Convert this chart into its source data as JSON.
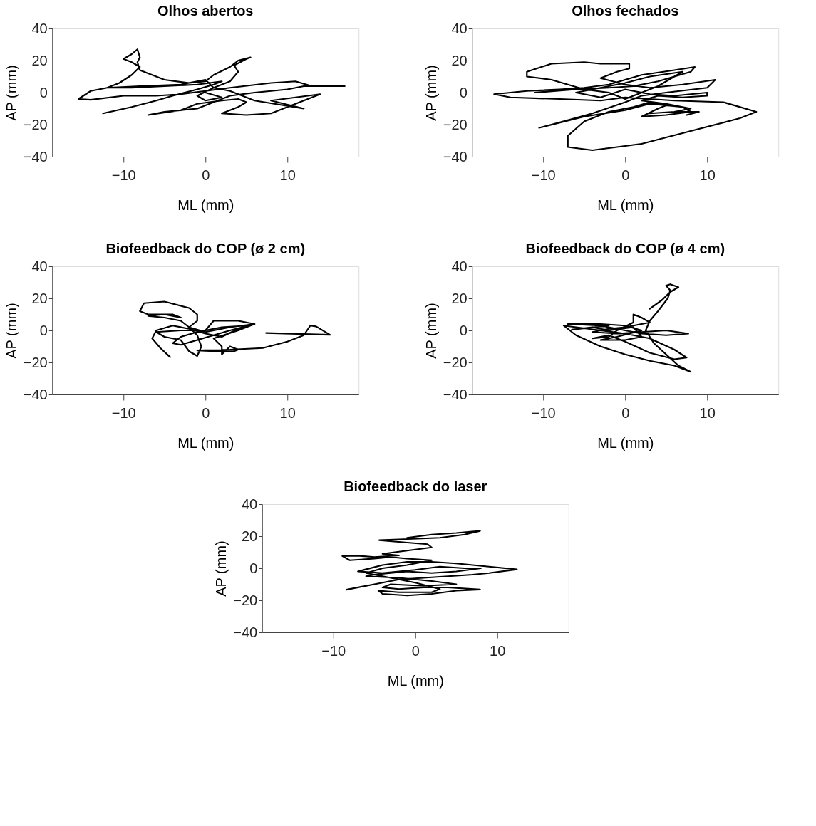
{
  "chart_data": [
    {
      "type": "line",
      "title": "Olhos abertos",
      "xlabel": "ML (mm)",
      "ylabel": "AP (mm)",
      "xlim": [
        -18.7,
        18.7
      ],
      "ylim": [
        -40,
        40
      ],
      "xticks": [
        -10,
        0,
        10
      ],
      "yticks": [
        -40,
        -20,
        0,
        20,
        40
      ],
      "grid": false,
      "series": [
        {
          "color": "#000000",
          "x": [
            -12.5,
            -9,
            -6,
            -4,
            -1,
            1,
            2,
            -1,
            -5,
            -9,
            -12,
            -14,
            -15.5,
            -14,
            -10,
            -6,
            -3,
            0,
            3,
            8,
            11,
            13,
            17,
            12,
            10,
            6,
            3,
            1,
            -1,
            -5,
            -7,
            -3,
            -1,
            2,
            4,
            5,
            4,
            2,
            5,
            8,
            11,
            14,
            11,
            8,
            12,
            6,
            3,
            1,
            3,
            3.5,
            4,
            3.5,
            5,
            5.5,
            4,
            3,
            1,
            0,
            -2,
            -5,
            -8,
            -8.3,
            -8,
            -8.3,
            -9,
            -10,
            -9,
            -8,
            -9,
            -10.5,
            -12,
            -8,
            -3,
            0,
            1,
            -1,
            0,
            2,
            0
          ],
          "values": [
            -13,
            -9,
            -5,
            -2,
            2,
            5,
            7,
            5,
            4,
            3,
            3,
            1,
            -4,
            -4.5,
            -2,
            -2,
            -1,
            1,
            3,
            6,
            7,
            4,
            4,
            4,
            2,
            0,
            -2,
            -6,
            -10,
            -12,
            -14,
            -11,
            -7,
            -5,
            -4,
            -6,
            -9,
            -13,
            -14,
            -13,
            -7,
            -1,
            -3,
            -5,
            -10,
            -5,
            1,
            3,
            7,
            10,
            13,
            17,
            21,
            22,
            20,
            16,
            11,
            7,
            6,
            8,
            14,
            19,
            22,
            27,
            24,
            21,
            19,
            16,
            11,
            6,
            3,
            4,
            5,
            8,
            3,
            -2,
            -5,
            -3,
            0
          ]
        }
      ]
    },
    {
      "type": "line",
      "title": "Olhos fechados",
      "xlabel": "ML (mm)",
      "ylabel": "AP (mm)",
      "xlim": [
        -18.7,
        18.7
      ],
      "ylim": [
        -40,
        40
      ],
      "xticks": [
        -10,
        0,
        10
      ],
      "yticks": [
        -40,
        -20,
        0,
        20,
        40
      ],
      "grid": false,
      "series": [
        {
          "color": "#000000",
          "x": [
            -11,
            -6,
            -2,
            1,
            4,
            8,
            8.5,
            6,
            2,
            -2,
            -5,
            -8,
            -12,
            -16,
            -14,
            -8,
            -3,
            0,
            3,
            6,
            12,
            16,
            14,
            8,
            2,
            -4,
            -7,
            -7,
            -5,
            -2,
            1,
            3,
            5,
            4,
            2,
            5,
            8,
            7,
            3,
            0,
            -5,
            -10.5,
            -9,
            -4,
            0,
            2,
            5,
            10,
            11,
            7,
            3,
            0,
            -3,
            -1,
            0.5,
            0.5,
            -3,
            -5,
            -9,
            -12,
            -12,
            -9,
            -7,
            -5,
            -2,
            0,
            2,
            4,
            6,
            7,
            3,
            0,
            -3,
            -6,
            -3,
            0,
            3,
            6,
            10,
            10,
            7,
            4,
            2,
            5,
            8,
            6,
            3,
            6,
            9,
            7.5
          ],
          "values": [
            0,
            2,
            3,
            4,
            7,
            13,
            16,
            14,
            11,
            5,
            3,
            2,
            1,
            -1,
            -3,
            -4,
            -5,
            -3,
            -4,
            -5,
            -6,
            -12,
            -16,
            -24,
            -32,
            -36,
            -34,
            -27,
            -18,
            -12,
            -9,
            -6,
            -8,
            -10,
            -15,
            -14,
            -12,
            -9,
            -7,
            -11,
            -15,
            -22,
            -20,
            -13,
            -6,
            -2,
            0,
            3,
            8,
            5,
            3,
            5,
            9,
            13,
            15,
            18,
            18,
            19,
            18,
            13,
            10,
            8,
            5,
            2,
            0,
            -4,
            0,
            4,
            10,
            13,
            10,
            6,
            3,
            0,
            -3,
            2,
            -1,
            -2,
            0,
            -2,
            -3,
            -2,
            -5,
            -7,
            -10,
            -12,
            -13,
            -12,
            -12,
            -14
          ]
        }
      ]
    },
    {
      "type": "line",
      "title": "Biofeedback do COP (ø 2 cm)",
      "xlabel": "ML (mm)",
      "ylabel": "AP (mm)",
      "xlim": [
        -18.7,
        18.7
      ],
      "ylim": [
        -40,
        40
      ],
      "xticks": [
        -10,
        0,
        10
      ],
      "yticks": [
        -40,
        -20,
        0,
        20,
        40
      ],
      "grid": false,
      "series": [
        {
          "color": "#000000",
          "x": [
            -4.3,
            -5.5,
            -6.5,
            -6,
            -4,
            -2,
            0,
            2,
            4,
            5,
            2,
            -1,
            -3,
            -4,
            -3,
            -1,
            1,
            3,
            6,
            3,
            0,
            -2,
            -1,
            -1,
            -2,
            -5,
            -7.5,
            -8,
            -7,
            -4,
            -3,
            -5,
            -7,
            -5,
            -3,
            -2,
            -1,
            -0.5,
            -1,
            -2,
            -3,
            -5,
            -6,
            -3,
            0,
            1,
            4,
            6,
            4,
            1,
            2,
            2,
            3,
            4,
            3.5,
            1,
            -1,
            3,
            7,
            10,
            12,
            12.8,
            13.5,
            15.2,
            12,
            7.4
          ],
          "values": [
            -16.7,
            -11,
            -5,
            0,
            3,
            1,
            -2,
            -4,
            1,
            3,
            2,
            -1,
            -4,
            -8,
            -9,
            -6,
            -3,
            0,
            4,
            2,
            -1,
            2,
            6,
            10,
            14,
            18,
            17,
            12,
            10,
            10,
            8,
            10,
            9,
            8,
            6,
            2,
            -3,
            -10,
            -16,
            -13,
            -6,
            -4,
            -1,
            0,
            0,
            6,
            6,
            4,
            0,
            -5,
            -10,
            -15,
            -10,
            -12,
            -13,
            -13,
            -12.5,
            -12,
            -11,
            -7,
            -3,
            3,
            2.5,
            -2.7,
            -2.3,
            -1.6
          ]
        }
      ]
    },
    {
      "type": "line",
      "title": "Biofeedback do COP (ø 4 cm)",
      "xlabel": "ML (mm)",
      "ylabel": "AP (mm)",
      "xlim": [
        -18.7,
        18.7
      ],
      "ylim": [
        -40,
        40
      ],
      "xticks": [
        -10,
        0,
        10
      ],
      "yticks": [
        -40,
        -20,
        0,
        20,
        40
      ],
      "grid": false,
      "series": [
        {
          "color": "#000000",
          "x": [
            3,
            4.5,
            5.5,
            6.5,
            5.5,
            5,
            5.5,
            5.2,
            4,
            3,
            2.5,
            3.5,
            5,
            6.5,
            8,
            6,
            3,
            0,
            -3,
            -6,
            -7.5,
            -6,
            -3,
            0,
            3,
            6,
            7.5,
            6,
            3,
            0,
            -2,
            -4,
            -2,
            -1,
            1,
            1,
            2,
            3,
            0,
            -2,
            -4,
            -1,
            2,
            5,
            7.7,
            5,
            2,
            -1,
            -3,
            -7,
            -3,
            0,
            2,
            -1,
            -3,
            0,
            2,
            1,
            -2,
            -4,
            -6.5,
            -2
          ],
          "values": [
            13.5,
            19,
            24,
            27,
            28.8,
            28,
            25,
            20,
            12,
            6,
            0,
            -8,
            -15,
            -22,
            -25.9,
            -22,
            -19,
            -15,
            -10,
            -3,
            3,
            2,
            0,
            -2,
            -5,
            -12,
            -17,
            -18,
            -14,
            -7,
            -3,
            -5,
            -4,
            0,
            5,
            10,
            8,
            5,
            2,
            1,
            -1,
            -2,
            -1,
            0,
            -2,
            -3,
            -2,
            1,
            3,
            4,
            4,
            3,
            0,
            -4,
            -6,
            -6,
            -4,
            2,
            0,
            2,
            0.5,
            3
          ]
        }
      ]
    },
    {
      "type": "line",
      "title": "Biofeedback do laser",
      "xlabel": "ML (mm)",
      "ylabel": "AP (mm)",
      "xlim": [
        -18.7,
        18.7
      ],
      "ylim": [
        -40,
        40
      ],
      "xticks": [
        -10,
        0,
        10
      ],
      "yticks": [
        -40,
        -20,
        0,
        20,
        40
      ],
      "grid": false,
      "series": [
        {
          "color": "#000000",
          "x": [
            -8.4,
            -5,
            -2,
            1,
            4,
            7,
            9,
            12.4,
            9,
            5,
            2,
            -1,
            -4,
            -7,
            -4,
            0,
            3,
            6,
            8,
            5,
            2,
            -1,
            -5,
            -6,
            -2,
            2,
            5,
            1,
            -3,
            -4,
            -2,
            1,
            4,
            7.9,
            5,
            2,
            -1,
            -4,
            -4.5,
            -2,
            2,
            3,
            0,
            -3,
            -6,
            -4,
            -1,
            2,
            -1,
            -3,
            -5,
            -8,
            -8.9,
            -7,
            -5,
            -2,
            -4,
            -1,
            2,
            1.5,
            -1,
            -4.4,
            -2,
            3,
            6,
            7.9,
            5,
            2,
            -1
          ],
          "values": [
            -13.4,
            -10,
            -7,
            -6,
            -5,
            -4,
            -3,
            -0.7,
            1,
            3,
            4,
            4,
            2,
            -2,
            -3,
            -1,
            1,
            0,
            0,
            -2,
            -3,
            -2,
            -4,
            -5,
            -6,
            -8,
            -10,
            -11,
            -10,
            -12,
            -13,
            -12,
            -12,
            -13.3,
            -14,
            -16,
            -17,
            -16,
            -14,
            -15,
            -15,
            -13,
            -9,
            -6,
            -3,
            0,
            2,
            5,
            6,
            7,
            6,
            5,
            7.6,
            7.8,
            7,
            8,
            9,
            11,
            13,
            15,
            16,
            17.5,
            18,
            19,
            21,
            23.3,
            22,
            21,
            19
          ]
        }
      ]
    }
  ]
}
